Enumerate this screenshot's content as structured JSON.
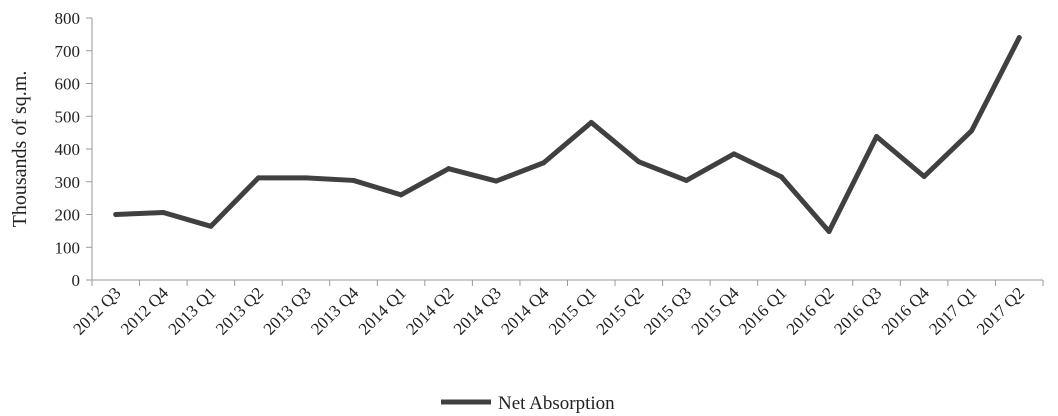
{
  "chart_data": {
    "type": "line",
    "title": "",
    "xlabel": "",
    "ylabel": "Thousands of sq.m.",
    "ylim": [
      0,
      800
    ],
    "yticks": [
      "0",
      "100",
      "200",
      "300",
      "400",
      "500",
      "600",
      "700",
      "800"
    ],
    "grid": false,
    "legend_position": "bottom",
    "categories": [
      "2012 Q3",
      "2012 Q4",
      "2013 Q1",
      "2013 Q2",
      "2013 Q3",
      "2013 Q4",
      "2014 Q1",
      "2014 Q2",
      "2014 Q3",
      "2014 Q4",
      "2015 Q1",
      "2015 Q2",
      "2015 Q3",
      "2015 Q4",
      "2016 Q1",
      "2016 Q2",
      "2016 Q3",
      "2016 Q4",
      "2017 Q1",
      "2017 Q2"
    ],
    "series": [
      {
        "name": "Net Absorption",
        "color": "#404040",
        "values": [
          200,
          206,
          164,
          312,
          312,
          304,
          260,
          340,
          302,
          358,
          481,
          361,
          304,
          385,
          315,
          148,
          438,
          316,
          456,
          740
        ]
      }
    ]
  }
}
